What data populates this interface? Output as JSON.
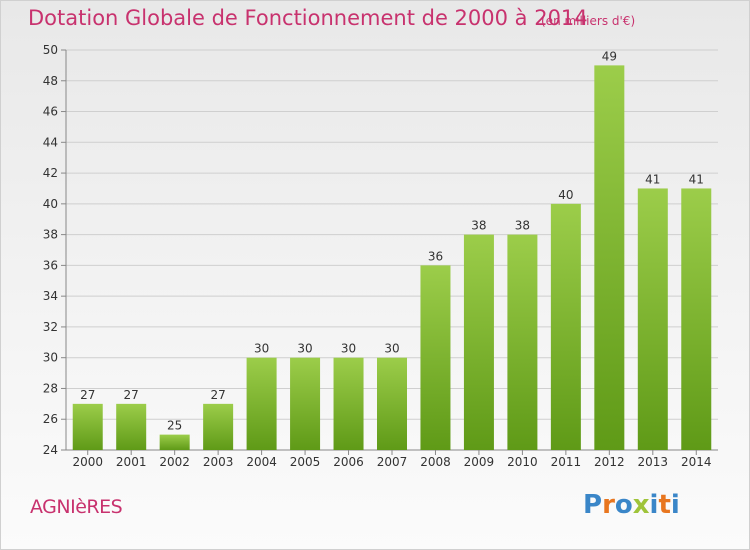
{
  "header": {
    "title": "Dotation Globale de Fonctionnement de 2000 à 2014",
    "subtitle": "(en milliers d'€)"
  },
  "footer": {
    "commune": "AGNIèRES",
    "brand": "Proxiti"
  },
  "colors": {
    "title": "#c8326e",
    "bar_light": "#9ccd4a",
    "bar_dark": "#5f9a17",
    "brand_letters": [
      "#3a86c8",
      "#e8761f",
      "#3a86c8",
      "#9fc43a",
      "#3a86c8",
      "#e8761f",
      "#3a86c8"
    ]
  },
  "chart_data": {
    "type": "bar",
    "title": "Dotation Globale de Fonctionnement de 2000 à 2014",
    "subtitle": "(en milliers d'€)",
    "categories": [
      "2000",
      "2001",
      "2002",
      "2003",
      "2004",
      "2005",
      "2006",
      "2007",
      "2008",
      "2009",
      "2010",
      "2011",
      "2012",
      "2013",
      "2014"
    ],
    "values": [
      27,
      27,
      25,
      27,
      30,
      30,
      30,
      30,
      36,
      38,
      38,
      40,
      49,
      41,
      41
    ],
    "ylim": [
      24,
      50
    ],
    "yticks": [
      24,
      26,
      28,
      30,
      32,
      34,
      36,
      38,
      40,
      42,
      44,
      46,
      48,
      50
    ],
    "grid": true,
    "xlabel": "",
    "ylabel": ""
  }
}
